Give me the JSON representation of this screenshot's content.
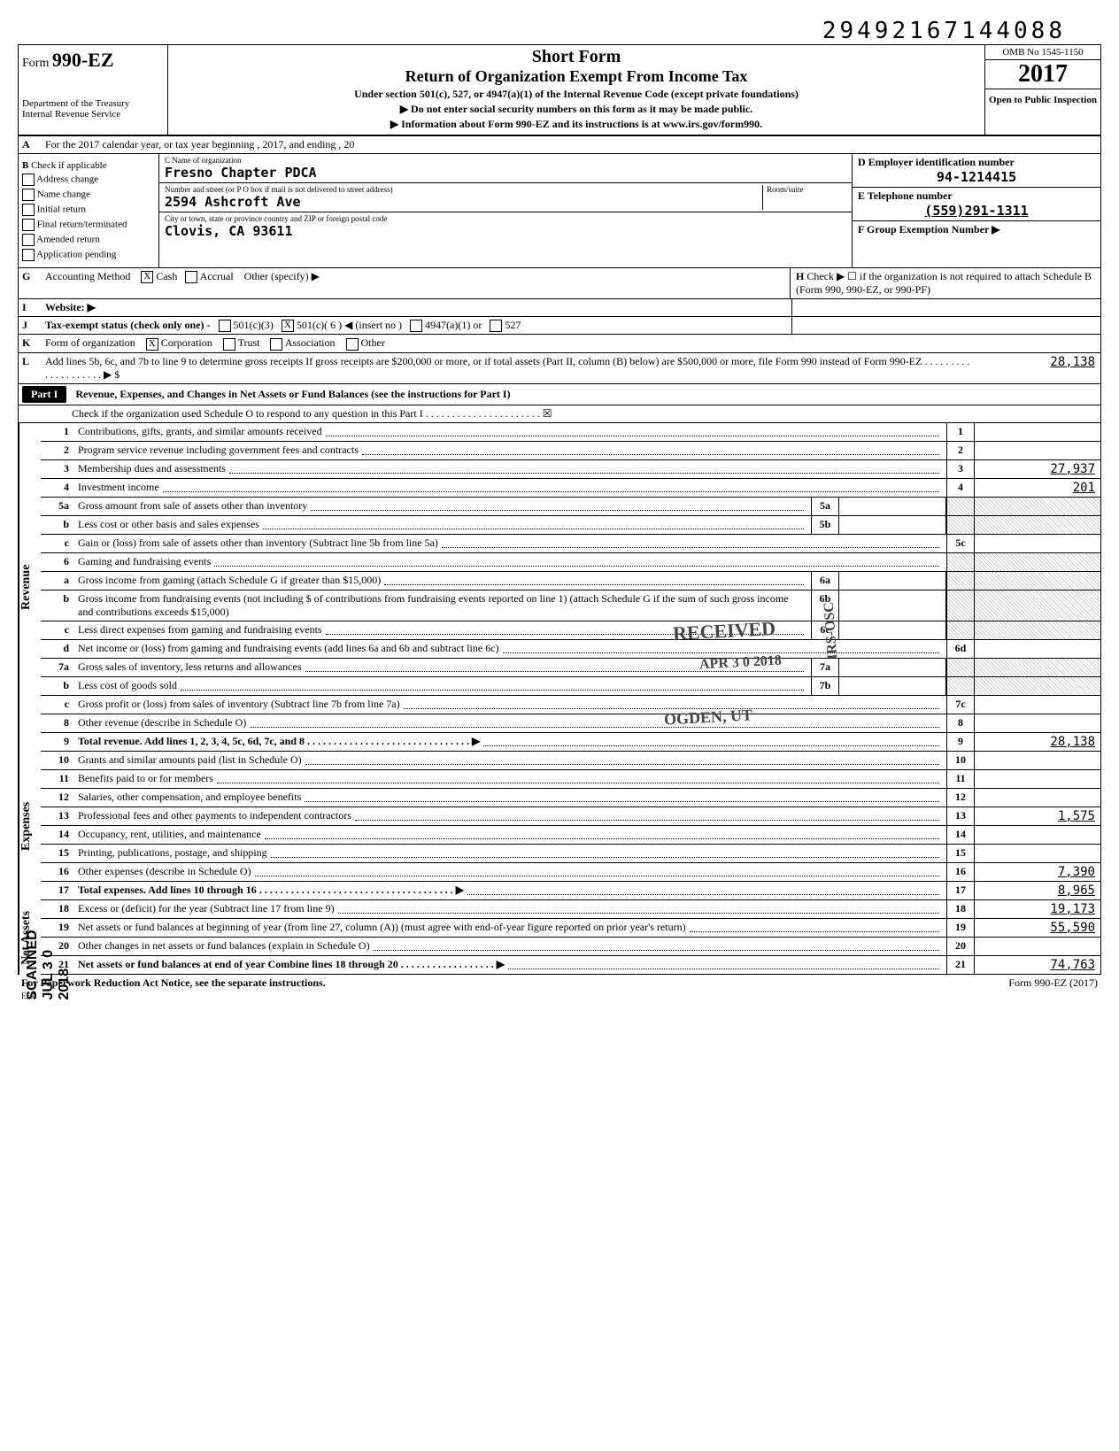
{
  "dln": "29492167144088",
  "form": {
    "number": "990-EZ",
    "agency1": "Department of the Treasury",
    "agency2": "Internal Revenue Service",
    "title1": "Short Form",
    "title2": "Return of Organization Exempt From Income Tax",
    "sub1": "Under section 501(c), 527, or 4947(a)(1) of the Internal Revenue Code (except private foundations)",
    "sub2": "▶ Do not enter social security numbers on this form as it may be made public.",
    "sub3": "▶ Information about Form 990-EZ and its instructions is at www.irs.gov/form990.",
    "omb": "OMB No 1545-1150",
    "year": "2017",
    "open": "Open to Public Inspection"
  },
  "line_a": "For the 2017 calendar year, or tax year beginning                                                             , 2017, and ending                                             , 20",
  "section_b": {
    "header": "Check if applicable",
    "opts": [
      "Address change",
      "Name change",
      "Initial return",
      "Final return/terminated",
      "Amended return",
      "Application pending"
    ]
  },
  "org": {
    "name_label": "C  Name of organization",
    "name": "Fresno Chapter PDCA",
    "addr_label": "Number and street (or P O  box  if mail is not delivered to street address)",
    "room_label": "Room/suite",
    "addr": "2594 Ashcroft Ave",
    "city_label": "City or town, state or province  country  and ZIP or foreign postal code",
    "city": "Clovis, CA 93611"
  },
  "right_box": {
    "d_label": "D  Employer identification number",
    "d_value": "94-1214415",
    "e_label": "E  Telephone number",
    "e_value": "(559)291-1311",
    "f_label": "F  Group Exemption Number  ▶"
  },
  "line_g": "Accounting Method",
  "line_g_opts": [
    "Cash",
    "Accrual",
    "Other (specify) ▶"
  ],
  "line_h": "Check ▶ ☐ if the organization is not required to attach Schedule B (Form 990, 990-EZ, or 990-PF)",
  "line_i": "Website:  ▶",
  "line_j": "Tax-exempt status (check only one) -",
  "line_j_opts": [
    "501(c)(3)",
    "501(c)( 6 ) ◀ (insert no )",
    "4947(a)(1) or",
    "527"
  ],
  "line_k": "Form of organization",
  "line_k_opts": [
    "Corporation",
    "Trust",
    "Association",
    "Other"
  ],
  "line_l": "Add lines 5b, 6c, and 7b to line 9 to determine gross receipts  If gross receipts are $200,000 or more, or if total assets (Part II, column (B) below) are $500,000 or more, file Form 990 instead of Form 990-EZ    . . . . . . . . . . . . . . . . . . . .  ▶ $",
  "line_l_value": "28,138",
  "part1": {
    "label": "Part I",
    "title": "Revenue, Expenses, and Changes in Net Assets or Fund Balances (see the instructions for Part I)",
    "check": "Check if the organization used Schedule O to respond to any question in this Part I   . . . . . . . . . . . . . . . . . . . . . . ☒"
  },
  "revenue_label": "Revenue",
  "expenses_label": "Expenses",
  "netassets_label": "Net Assets",
  "lines": {
    "1": {
      "num": "1",
      "desc": "Contributions, gifts, grants, and similar amounts received",
      "rn": "1",
      "val": ""
    },
    "2": {
      "num": "2",
      "desc": "Program service revenue including government fees and contracts",
      "rn": "2",
      "val": ""
    },
    "3": {
      "num": "3",
      "desc": "Membership dues and assessments",
      "rn": "3",
      "val": "27,937"
    },
    "4": {
      "num": "4",
      "desc": "Investment income",
      "rn": "4",
      "val": "201"
    },
    "5a": {
      "num": "5a",
      "desc": "Gross amount from sale of assets other than inventory",
      "mn": "5a"
    },
    "5b": {
      "num": "b",
      "desc": "Less cost or other basis and sales expenses",
      "mn": "5b"
    },
    "5c": {
      "num": "c",
      "desc": "Gain or (loss) from sale of assets other than inventory (Subtract line 5b from line 5a)",
      "rn": "5c",
      "val": ""
    },
    "6": {
      "num": "6",
      "desc": "Gaming and fundraising events"
    },
    "6a": {
      "num": "a",
      "desc": "Gross income from gaming (attach Schedule G if greater than $15,000)",
      "mn": "6a"
    },
    "6b": {
      "num": "b",
      "desc": "Gross income from fundraising events (not including    $                      of contributions from fundraising events reported on line 1) (attach Schedule G if the sum of such gross income and contributions exceeds $15,000)",
      "mn": "6b"
    },
    "6c": {
      "num": "c",
      "desc": "Less  direct expenses from gaming and fundraising events",
      "mn": "6c"
    },
    "6d": {
      "num": "d",
      "desc": "Net income or (loss) from gaming and fundraising events (add lines 6a and 6b and subtract line 6c)",
      "rn": "6d",
      "val": ""
    },
    "7a": {
      "num": "7a",
      "desc": "Gross sales of inventory, less returns and allowances",
      "mn": "7a"
    },
    "7b": {
      "num": "b",
      "desc": "Less cost of goods sold",
      "mn": "7b"
    },
    "7c": {
      "num": "c",
      "desc": "Gross profit or (loss) from sales of inventory (Subtract line 7b from line 7a)",
      "rn": "7c",
      "val": ""
    },
    "8": {
      "num": "8",
      "desc": "Other revenue (describe in Schedule O)",
      "rn": "8",
      "val": ""
    },
    "9": {
      "num": "9",
      "desc": "Total revenue.  Add lines 1, 2, 3, 4, 5c, 6d, 7c, and 8    . . . . . . . . . . . . . . . . . . . . . . . . . . . . . . . ▶",
      "rn": "9",
      "val": "28,138"
    },
    "10": {
      "num": "10",
      "desc": "Grants and similar amounts paid (list in Schedule O)",
      "rn": "10",
      "val": ""
    },
    "11": {
      "num": "11",
      "desc": "Benefits paid to or for members",
      "rn": "11",
      "val": ""
    },
    "12": {
      "num": "12",
      "desc": "Salaries, other compensation, and employee benefits",
      "rn": "12",
      "val": ""
    },
    "13": {
      "num": "13",
      "desc": "Professional fees and other payments to independent contractors",
      "rn": "13",
      "val": "1,575"
    },
    "14": {
      "num": "14",
      "desc": "Occupancy, rent, utilities, and maintenance",
      "rn": "14",
      "val": ""
    },
    "15": {
      "num": "15",
      "desc": "Printing, publications, postage, and shipping",
      "rn": "15",
      "val": ""
    },
    "16": {
      "num": "16",
      "desc": "Other expenses (describe in Schedule O)",
      "rn": "16",
      "val": "7,390"
    },
    "17": {
      "num": "17",
      "desc": "Total expenses.  Add lines 10 through 16    . . . . . . . . . . . . . . . . . . . . . . . . . . . . . . . . . . . . . ▶",
      "rn": "17",
      "val": "8,965"
    },
    "18": {
      "num": "18",
      "desc": "Excess or (deficit) for the year (Subtract line 17 from line 9)",
      "rn": "18",
      "val": "19,173"
    },
    "19": {
      "num": "19",
      "desc": "Net assets or fund balances at beginning of year (from line 27, column (A)) (must agree with end-of-year figure reported on prior year's return)",
      "rn": "19",
      "val": "55,590"
    },
    "20": {
      "num": "20",
      "desc": "Other changes in net assets or fund balances (explain in Schedule O)",
      "rn": "20",
      "val": ""
    },
    "21": {
      "num": "21",
      "desc": "Net assets or fund balances at end of year  Combine lines 18 through 20    . . . . . . . . . . . . . . . . . . ▶",
      "rn": "21",
      "val": "74,763"
    }
  },
  "footer": {
    "left": "For Paperwork Reduction Act Notice, see the separate instructions.",
    "mid": "EEA",
    "right": "Form 990-EZ (2017)"
  },
  "stamps": {
    "received": "RECEIVED",
    "date": "APR 3 0 2018",
    "irs": "IRS-OSC",
    "ogden": "OGDEN, UT",
    "scanned": "SCANNED JUL 3 0 2018"
  }
}
